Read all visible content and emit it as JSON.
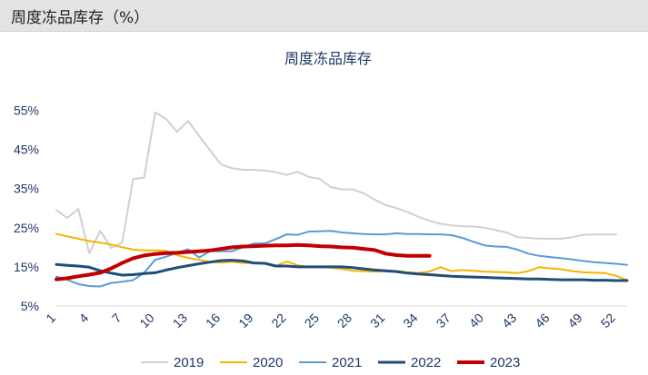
{
  "header": {
    "title": "周度冻品库存（%）"
  },
  "chart_data": {
    "type": "line",
    "title": "周度冻品库存",
    "xlabel": "",
    "ylabel": "",
    "x": [
      1,
      2,
      3,
      4,
      5,
      6,
      7,
      8,
      9,
      10,
      11,
      12,
      13,
      14,
      15,
      16,
      17,
      18,
      19,
      20,
      21,
      22,
      23,
      24,
      25,
      26,
      27,
      28,
      29,
      30,
      31,
      32,
      33,
      34,
      35,
      36,
      37,
      38,
      39,
      40,
      41,
      42,
      43,
      44,
      45,
      46,
      47,
      48,
      49,
      50,
      51,
      52,
      53
    ],
    "x_ticks": [
      1,
      4,
      7,
      10,
      13,
      16,
      19,
      22,
      25,
      28,
      31,
      34,
      37,
      40,
      43,
      46,
      49,
      52
    ],
    "y_ticks": [
      5,
      15,
      25,
      35,
      45,
      55
    ],
    "y_tick_labels": [
      "5%",
      "15%",
      "25%",
      "35%",
      "45%",
      "55%"
    ],
    "ylim": [
      5,
      60
    ],
    "xlim": [
      1,
      53
    ],
    "grid": false,
    "legend_position": "bottom",
    "series": [
      {
        "name": "2019",
        "color": "#d0d0d0",
        "width": 2,
        "values": [
          29.5,
          27.5,
          29.8,
          18.5,
          24.2,
          19.8,
          21.3,
          37.5,
          37.8,
          54.5,
          52.8,
          49.5,
          52.3,
          48.5,
          44.8,
          41.2,
          40.2,
          39.8,
          39.8,
          39.6,
          39.2,
          38.5,
          39.3,
          38.0,
          37.5,
          35.4,
          34.8,
          34.8,
          33.8,
          32.2,
          30.8,
          30.0,
          29.0,
          27.8,
          26.8,
          26.0,
          25.6,
          25.4,
          25.3,
          25.0,
          24.4,
          23.8,
          22.6,
          22.4,
          22.2,
          22.2,
          22.2,
          22.6,
          23.2,
          23.3,
          23.3,
          23.3,
          null
        ]
      },
      {
        "name": "2020",
        "color": "#f5b400",
        "width": 2,
        "values": [
          23.4,
          22.8,
          22.2,
          21.6,
          21.2,
          20.7,
          20.0,
          19.4,
          19.2,
          19.2,
          19.1,
          18.0,
          17.3,
          16.8,
          16.3,
          16.1,
          16.3,
          16.0,
          16.0,
          15.8,
          15.2,
          16.4,
          15.4,
          15.0,
          14.9,
          14.8,
          14.5,
          14.0,
          13.9,
          13.8,
          13.9,
          13.9,
          13.6,
          13.4,
          13.8,
          14.9,
          13.9,
          14.2,
          14.0,
          13.8,
          13.7,
          13.6,
          13.4,
          13.9,
          14.9,
          14.6,
          14.4,
          13.9,
          13.6,
          13.5,
          13.4,
          12.7,
          11.6
        ]
      },
      {
        "name": "2021",
        "color": "#5b9bd5",
        "width": 2,
        "values": [
          12.5,
          11.7,
          10.6,
          10.1,
          10.0,
          10.9,
          11.2,
          11.6,
          13.5,
          16.8,
          17.6,
          18.6,
          19.5,
          17.4,
          19.0,
          19.0,
          19.0,
          20.0,
          21.0,
          21.0,
          22.1,
          23.3,
          23.2,
          24.0,
          24.1,
          24.2,
          23.8,
          23.6,
          23.4,
          23.3,
          23.3,
          23.6,
          23.4,
          23.4,
          23.3,
          23.3,
          23.1,
          22.4,
          21.4,
          20.5,
          20.2,
          20.1,
          19.4,
          18.4,
          17.8,
          17.5,
          17.2,
          16.9,
          16.5,
          16.2,
          16.0,
          15.8,
          15.5
        ]
      },
      {
        "name": "2022",
        "color": "#1f4e79",
        "width": 3,
        "values": [
          15.6,
          15.4,
          15.2,
          14.9,
          14.0,
          13.4,
          12.9,
          13.0,
          13.3,
          13.5,
          14.2,
          14.8,
          15.3,
          15.8,
          16.2,
          16.6,
          16.7,
          16.5,
          16.0,
          15.9,
          15.2,
          15.2,
          15.0,
          15.0,
          15.0,
          15.0,
          15.0,
          14.8,
          14.5,
          14.2,
          14.0,
          13.8,
          13.4,
          13.2,
          13.0,
          12.8,
          12.6,
          12.5,
          12.4,
          12.3,
          12.2,
          12.1,
          12.0,
          11.9,
          11.9,
          11.8,
          11.7,
          11.7,
          11.7,
          11.6,
          11.6,
          11.5,
          11.5
        ]
      },
      {
        "name": "2023",
        "color": "#c00000",
        "width": 4,
        "values": [
          11.8,
          12.1,
          12.6,
          13.0,
          13.5,
          14.6,
          16.0,
          17.2,
          17.9,
          18.3,
          18.5,
          18.6,
          18.8,
          19.0,
          19.2,
          19.6,
          20.0,
          20.2,
          20.3,
          20.4,
          20.5,
          20.5,
          20.6,
          20.5,
          20.3,
          20.2,
          20.0,
          19.9,
          19.6,
          19.3,
          18.4,
          18.0,
          17.8,
          17.8,
          17.8,
          null,
          null,
          null,
          null,
          null,
          null,
          null,
          null,
          null,
          null,
          null,
          null,
          null,
          null,
          null,
          null,
          null,
          null
        ]
      }
    ]
  }
}
